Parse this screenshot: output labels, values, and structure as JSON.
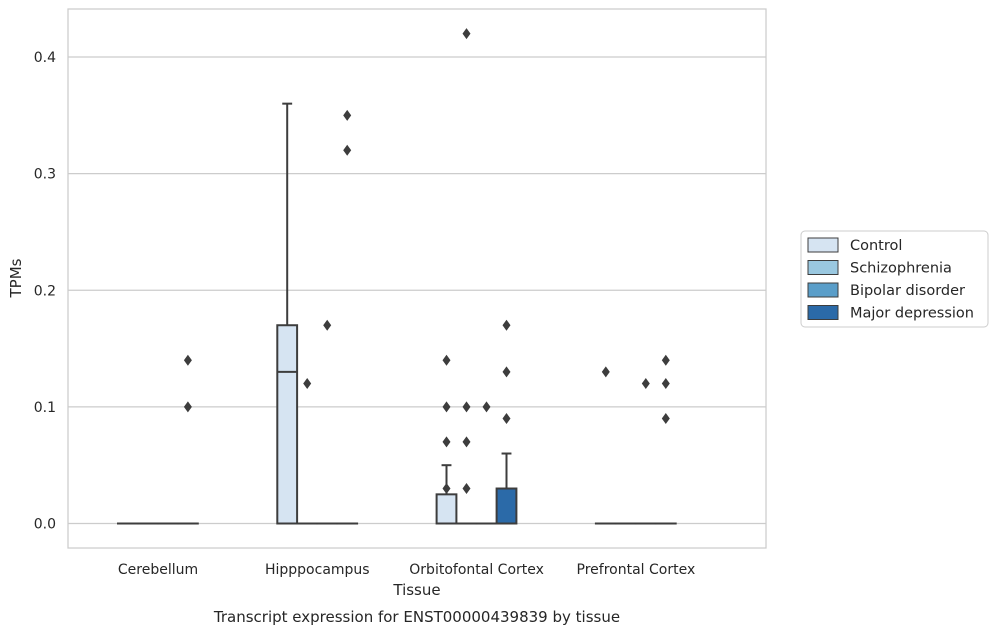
{
  "chart_data": {
    "type": "box",
    "title": "Transcript expression for ENST00000439839 by tissue",
    "xlabel": "Tissue",
    "ylabel": "TPMs",
    "ylim": [
      -0.02,
      0.44
    ],
    "yticks": [
      "0.0",
      "0.1",
      "0.2",
      "0.3",
      "0.4"
    ],
    "grid": "horizontal",
    "legend_placement": "right",
    "categories": [
      "Cerebellum",
      "Hipppocampus",
      "Orbitofontal Cortex",
      "Prefrontal Cortex"
    ],
    "series": [
      {
        "name": "Control",
        "color": "#d6e4f2",
        "boxes": [
          {
            "q1": 0,
            "median": 0,
            "q3": 0,
            "whislo": 0,
            "whishi": 0,
            "fliers": []
          },
          {
            "q1": 0,
            "median": 0.13,
            "q3": 0.17,
            "whislo": 0,
            "whishi": 0.36,
            "fliers": []
          },
          {
            "q1": 0,
            "median": 0,
            "q3": 0.025,
            "whislo": 0,
            "whishi": 0.05,
            "fliers": [
              0.14,
              0.1,
              0.07,
              0.03
            ]
          },
          {
            "q1": 0,
            "median": 0,
            "q3": 0,
            "whislo": 0,
            "whishi": 0,
            "fliers": [
              0.13
            ]
          }
        ]
      },
      {
        "name": "Schizophrenia",
        "color": "#9ac8e0",
        "boxes": [
          {
            "q1": 0,
            "median": 0,
            "q3": 0,
            "whislo": 0,
            "whishi": 0,
            "fliers": []
          },
          {
            "q1": 0,
            "median": 0,
            "q3": 0,
            "whislo": 0,
            "whishi": 0,
            "fliers": [
              0.12
            ]
          },
          {
            "q1": 0,
            "median": 0,
            "q3": 0,
            "whislo": 0,
            "whishi": 0,
            "fliers": [
              0.1,
              0.07,
              0.03
            ]
          },
          {
            "q1": 0,
            "median": 0,
            "q3": 0,
            "whislo": 0,
            "whishi": 0,
            "fliers": []
          }
        ]
      },
      {
        "name": "Bipolar disorder",
        "color": "#5a9ec9",
        "boxes": [
          {
            "q1": 0,
            "median": 0,
            "q3": 0,
            "whislo": 0,
            "whishi": 0,
            "fliers": []
          },
          {
            "q1": 0,
            "median": 0,
            "q3": 0,
            "whislo": 0,
            "whishi": 0,
            "fliers": [
              0.17
            ]
          },
          {
            "q1": 0,
            "median": 0,
            "q3": 0,
            "whislo": 0,
            "whishi": 0,
            "fliers": [
              0.1
            ]
          },
          {
            "q1": 0,
            "median": 0,
            "q3": 0,
            "whislo": 0,
            "whishi": 0,
            "fliers": [
              0.12
            ]
          }
        ]
      },
      {
        "name": "Major depression",
        "color": "#2b6aa8",
        "boxes": [
          {
            "q1": 0,
            "median": 0,
            "q3": 0,
            "whislo": 0,
            "whishi": 0,
            "fliers": [
              0.14,
              0.1
            ]
          },
          {
            "q1": 0,
            "median": 0,
            "q3": 0,
            "whislo": 0,
            "whishi": 0,
            "fliers": [
              0.35,
              0.32
            ]
          },
          {
            "q1": 0,
            "median": 0,
            "q3": 0.03,
            "whislo": 0,
            "whishi": 0.06,
            "fliers": [
              0.17,
              0.13,
              0.09
            ]
          },
          {
            "q1": 0,
            "median": 0,
            "q3": 0,
            "whislo": 0,
            "whishi": 0,
            "fliers": [
              0.14,
              0.12,
              0.09
            ]
          }
        ]
      }
    ],
    "outliers_extra": [
      {
        "category": "Orbitofontal Cortex",
        "series": "Schizophrenia",
        "value": 0.42
      }
    ]
  }
}
